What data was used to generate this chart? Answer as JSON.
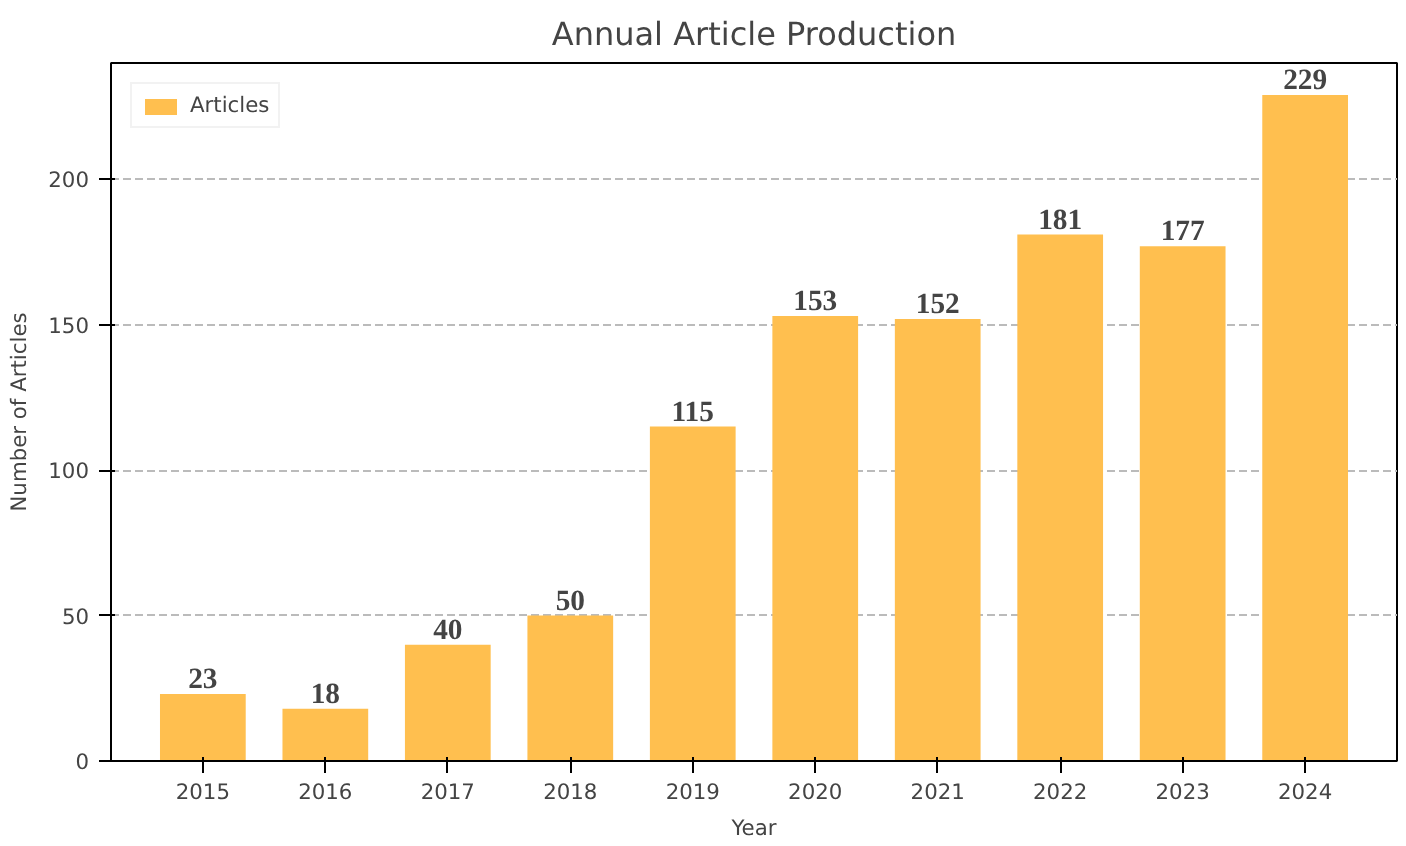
{
  "chart_data": {
    "type": "bar",
    "title": "Annual Article Production",
    "xlabel": "Year",
    "ylabel": "Number of Articles",
    "categories": [
      "2015",
      "2016",
      "2017",
      "2018",
      "2019",
      "2020",
      "2021",
      "2022",
      "2023",
      "2024"
    ],
    "series": [
      {
        "name": "Articles",
        "color": "#ffbf4f",
        "values": [
          23,
          18,
          40,
          50,
          115,
          153,
          152,
          181,
          177,
          229
        ]
      }
    ],
    "ylim": [
      0,
      240
    ],
    "yticks": [
      0,
      50,
      100,
      150,
      200
    ],
    "grid": "y",
    "legend": "top left",
    "data_labels": true
  }
}
